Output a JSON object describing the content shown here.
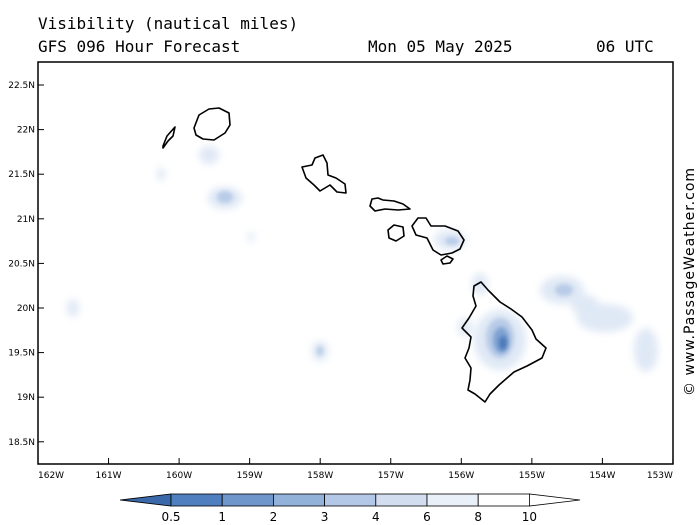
{
  "header": {
    "title": "Visibility (nautical miles)",
    "model": "GFS 096 Hour Forecast",
    "date": "Mon 05 May 2025",
    "time": "06 UTC"
  },
  "credit": "© www.PassageWeather.com",
  "axes": {
    "lat_labels": [
      "22.5N",
      "22N",
      "21.5N",
      "21N",
      "20.5N",
      "20N",
      "19.5N",
      "19N",
      "18.5N"
    ],
    "lon_labels": [
      "162W",
      "161W",
      "160W",
      "159W",
      "158W",
      "157W",
      "156W",
      "155W",
      "154W",
      "153W"
    ]
  },
  "legend": {
    "labels": [
      "0.5",
      "1",
      "2",
      "3",
      "4",
      "6",
      "8",
      "10"
    ],
    "colors": [
      "#3e6fb0",
      "#4f7fbf",
      "#6f97cc",
      "#93b2da",
      "#b3c8e6",
      "#d2def0",
      "#eaf0f8",
      "#ffffff"
    ]
  },
  "colors": {
    "land_outline": "#000000",
    "low_vis": "#4a78b8",
    "mid_vis": "#9bb6dc",
    "light_vis": "#dfe8f5"
  }
}
